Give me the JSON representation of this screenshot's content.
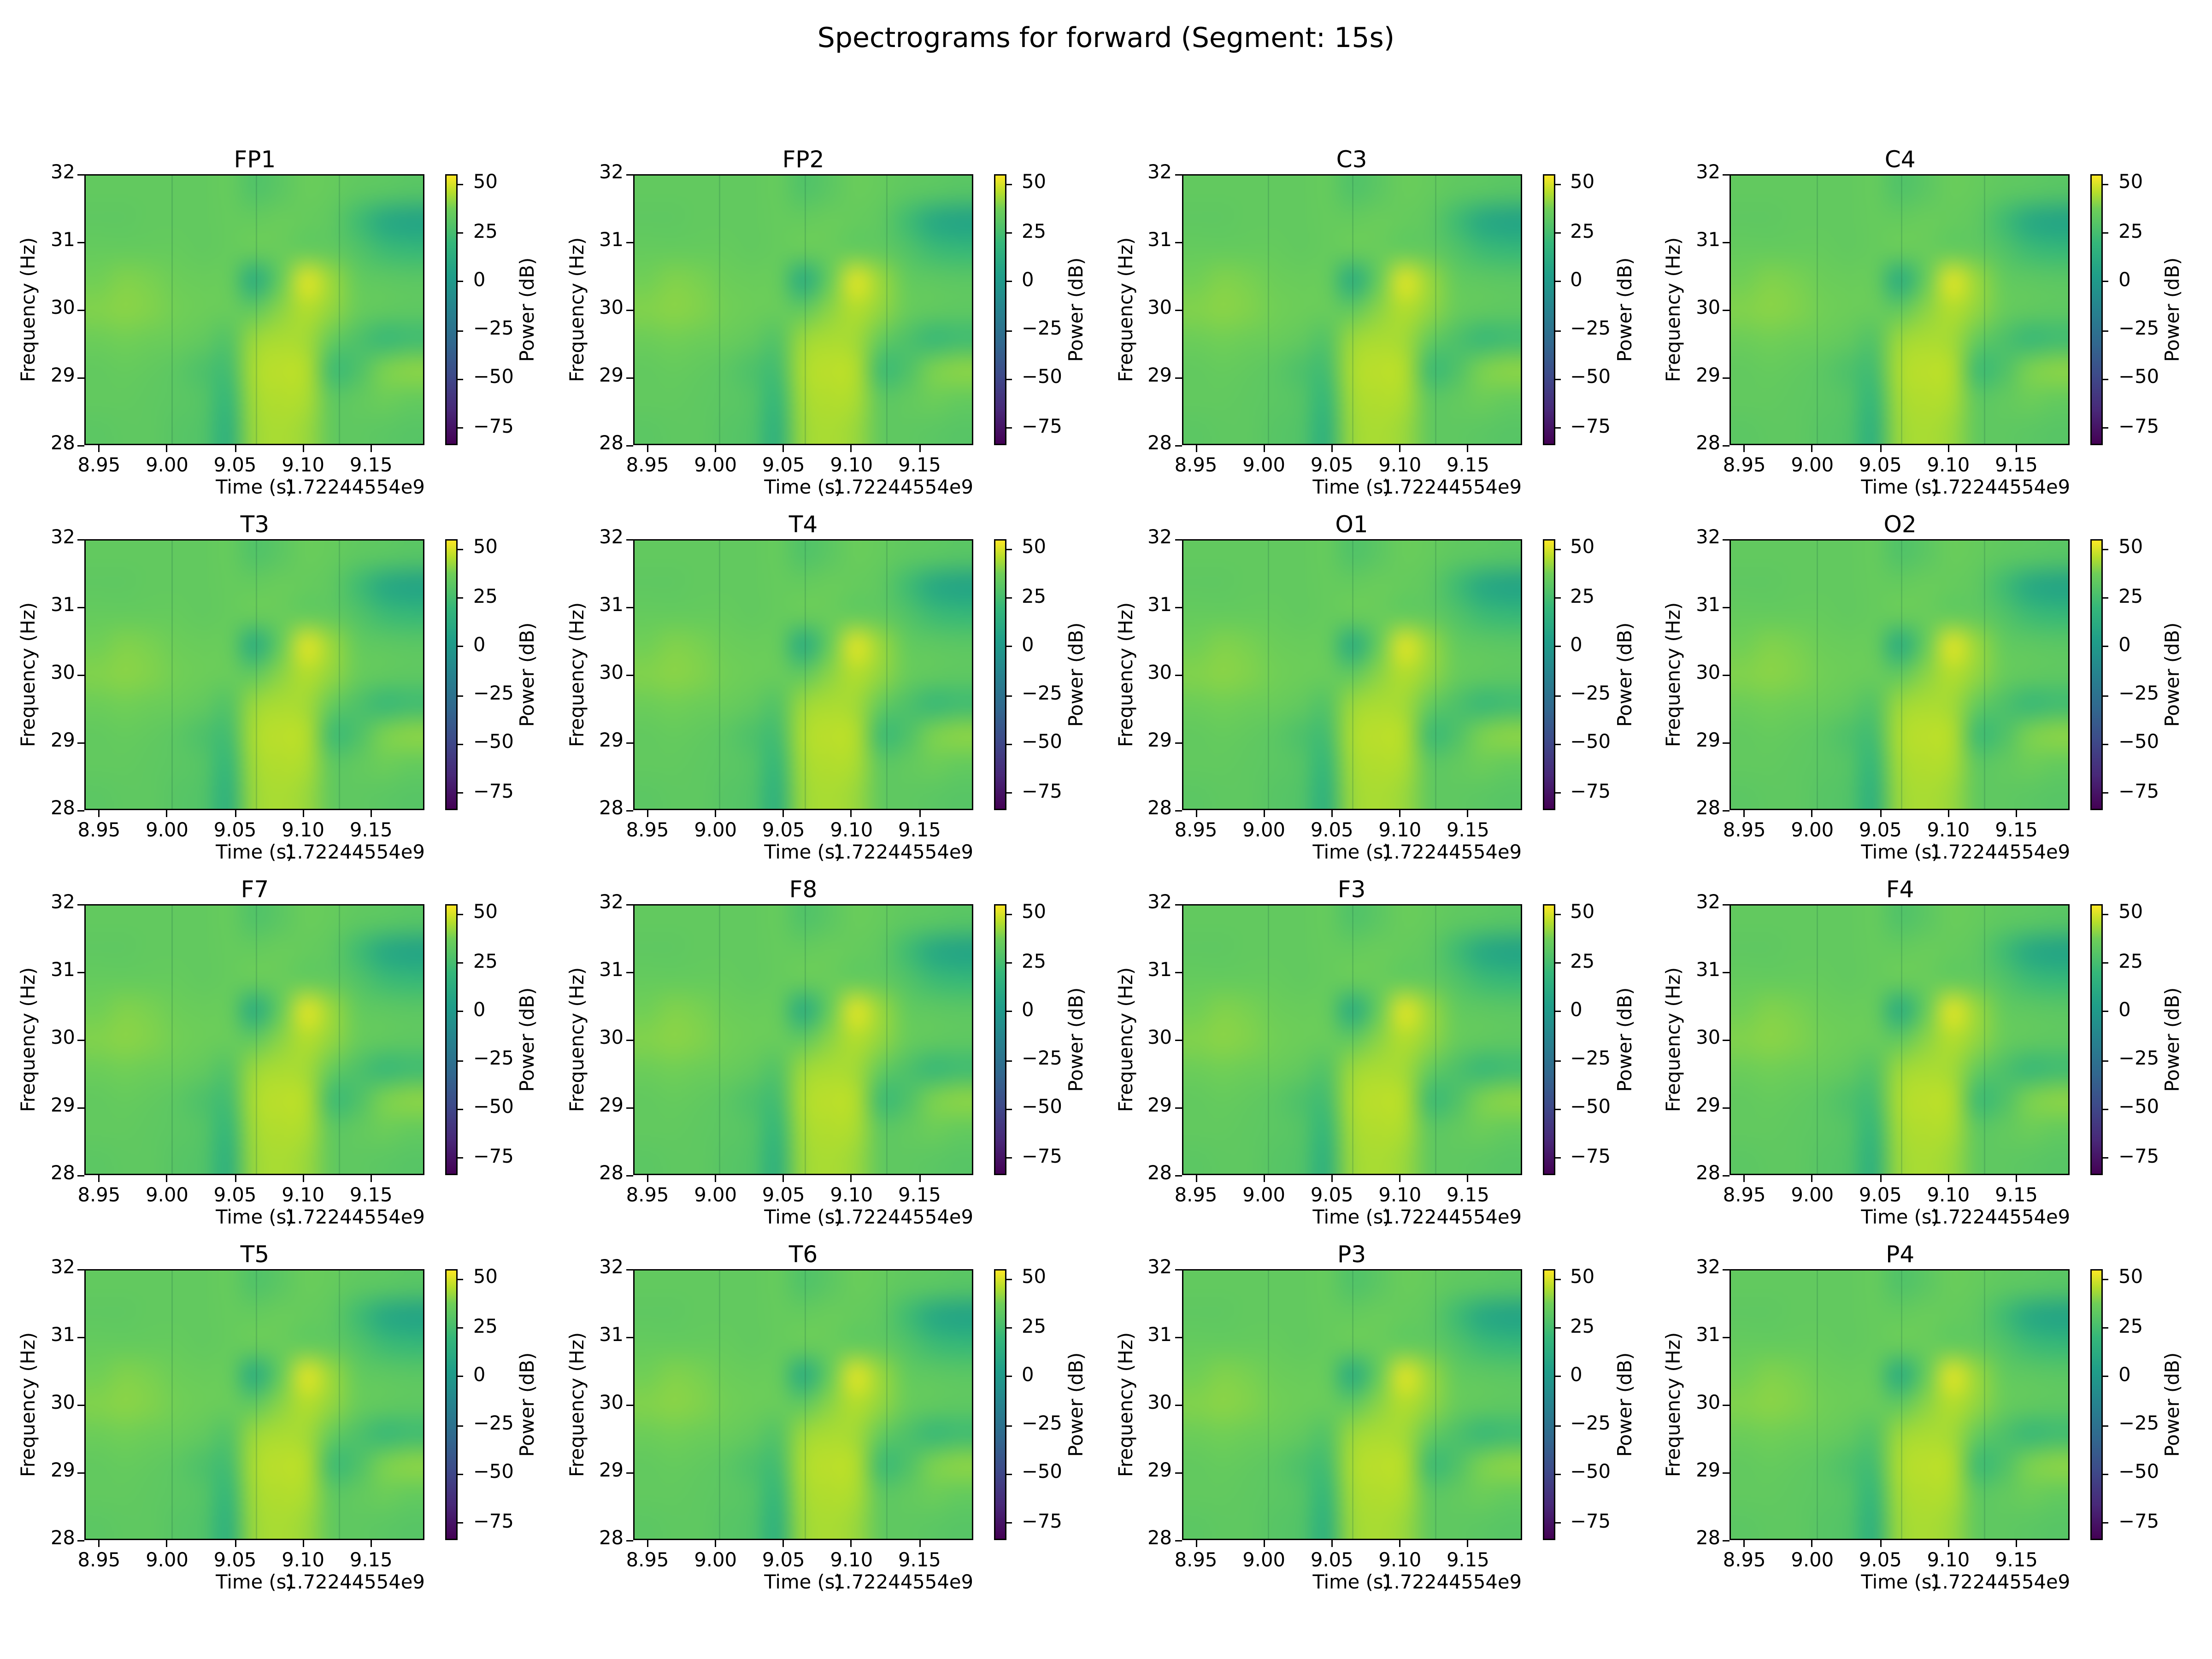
{
  "figure": {
    "title": "Spectrograms for forward (Segment: 15s)",
    "background_color": "#ffffff",
    "text_color": "#000000"
  },
  "chart_data": {
    "type": "heatmap",
    "layout": "4x4-grid",
    "subplot_titles": [
      "FP1",
      "FP2",
      "C3",
      "C4",
      "T3",
      "T4",
      "O1",
      "O2",
      "F7",
      "F8",
      "F3",
      "F4",
      "T5",
      "T6",
      "P3",
      "P4"
    ],
    "xlabel": "Time (s)",
    "ylabel": "Frequency (Hz)",
    "x_offset_text": "1.72244554e9",
    "x_ticks": [
      8.95,
      9.0,
      9.05,
      9.1,
      9.15
    ],
    "x_tick_labels": [
      "8.95",
      "9.00",
      "9.05",
      "9.10",
      "9.15"
    ],
    "x_range": [
      8.9395,
      9.1895
    ],
    "y_ticks": [
      32,
      31,
      30,
      29,
      28
    ],
    "y_tick_labels": [
      "32",
      "31",
      "30",
      "29",
      "28"
    ],
    "y_range": [
      28,
      32
    ],
    "grid": false,
    "segment_boundaries_frac": [
      0.252,
      0.503,
      0.747
    ],
    "colorbar": {
      "label": "Power (dB)",
      "tick_values": [
        50,
        25,
        0,
        -25,
        -50,
        -75
      ],
      "tick_labels": [
        "50",
        "25",
        "0",
        "−25",
        "−50",
        "−75"
      ],
      "vmin": -84,
      "vmax": 55,
      "colormap": "viridis"
    },
    "freq_rows_hz": [
      32.0,
      31.5,
      31.0,
      30.5,
      30.0,
      29.5,
      29.0,
      28.5,
      28.0
    ],
    "power_db_grid": [
      [
        34,
        34,
        34,
        34,
        34,
        35,
        29,
        32,
        36,
        35,
        33,
        32,
        31
      ],
      [
        33,
        33,
        34,
        34,
        34,
        35,
        35,
        36,
        35,
        33,
        24,
        11,
        7
      ],
      [
        35,
        35,
        35,
        35,
        34,
        35,
        36,
        36,
        35,
        34,
        29,
        23,
        21
      ],
      [
        38,
        40,
        39,
        37,
        36,
        35,
        14,
        35,
        51,
        43,
        35,
        33,
        32
      ],
      [
        40,
        41,
        40,
        38,
        37,
        36,
        34,
        41,
        46,
        42,
        36,
        34,
        33
      ],
      [
        37,
        38,
        37,
        36,
        34,
        30,
        43,
        45,
        44,
        35,
        28,
        22,
        24
      ],
      [
        34,
        35,
        34,
        32,
        28,
        25,
        45,
        47,
        46,
        24,
        28,
        39,
        41
      ],
      [
        34,
        34,
        33,
        32,
        30,
        21,
        44,
        46,
        45,
        33,
        34,
        37,
        35
      ],
      [
        32,
        33,
        33,
        31,
        29,
        17,
        43,
        45,
        43,
        34,
        33,
        32,
        31
      ]
    ],
    "viridis_stops": [
      [
        0.0,
        "#440154"
      ],
      [
        0.125,
        "#482878"
      ],
      [
        0.25,
        "#3e4989"
      ],
      [
        0.375,
        "#31688e"
      ],
      [
        0.5,
        "#26828e"
      ],
      [
        0.625,
        "#1f9e89"
      ],
      [
        0.75,
        "#35b779"
      ],
      [
        0.875,
        "#6ece58"
      ],
      [
        0.9375,
        "#b5de2b"
      ],
      [
        1.0,
        "#fde725"
      ]
    ]
  }
}
